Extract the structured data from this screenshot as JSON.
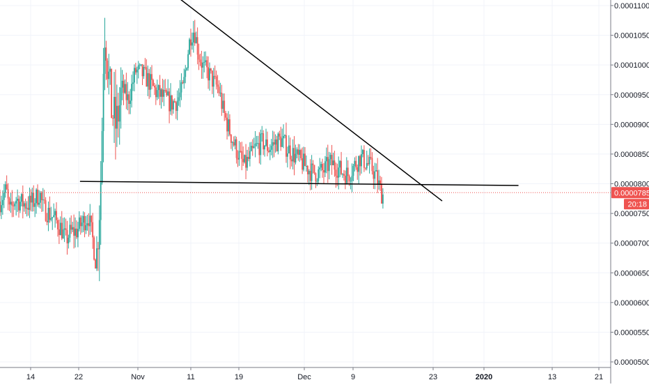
{
  "chart_data": {
    "type": "candlestick",
    "colors": {
      "up": "#26a69a",
      "down": "#ef5350",
      "grid": "#f0f3fa",
      "axis_text": "#131722",
      "trendline": "#000000",
      "price_label_bg": "#ef5350",
      "price_line": "#ef5350"
    },
    "y_axis": {
      "position": "right",
      "range": [
        4.95e-05,
        0.000111
      ],
      "ticks": [
        "0.0000500",
        "0.0000550",
        "0.0000600",
        "0.0000650",
        "0.0000700",
        "0.0000750",
        "0.0000800",
        "0.0000850",
        "0.0000900",
        "0.0000950",
        "0.0001000",
        "0.0001050",
        "0.0001100"
      ]
    },
    "x_axis": {
      "ticks": [
        {
          "label": "14",
          "bold": false
        },
        {
          "label": "22",
          "bold": false
        },
        {
          "label": "Nov",
          "bold": false
        },
        {
          "label": "11",
          "bold": false
        },
        {
          "label": "19",
          "bold": false
        },
        {
          "label": "Dec",
          "bold": false
        },
        {
          "label": "9",
          "bold": false
        },
        {
          "label": "23",
          "bold": false
        },
        {
          "label": "2020",
          "bold": true
        },
        {
          "label": "13",
          "bold": false
        },
        {
          "label": "21",
          "bold": false
        }
      ]
    },
    "current_price": {
      "label": "0.0000785",
      "value": 7.85e-05,
      "countdown": "20:18"
    },
    "trendlines": [
      {
        "name": "descending-resistance",
        "points": [
          [
            0.286,
            0.0001118
          ],
          [
            0.724,
            7.71e-05
          ]
        ]
      },
      {
        "name": "horizontal-support",
        "points": [
          [
            0.131,
            8.04e-05
          ],
          [
            0.849,
            7.97e-05
          ]
        ]
      }
    ],
    "price_path": [
      [
        0.0,
        7.7e-05
      ],
      [
        0.01,
        7.9e-05
      ],
      [
        0.016,
        7.5e-05
      ],
      [
        0.025,
        7.75e-05
      ],
      [
        0.035,
        7.68e-05
      ],
      [
        0.045,
        7.65e-05
      ],
      [
        0.055,
        7.7e-05
      ],
      [
        0.065,
        7.85e-05
      ],
      [
        0.07,
        7.6e-05
      ],
      [
        0.08,
        7.5e-05
      ],
      [
        0.09,
        7.4e-05
      ],
      [
        0.1,
        7.25e-05
      ],
      [
        0.108,
        7.05e-05
      ],
      [
        0.115,
        7.18e-05
      ],
      [
        0.125,
        7.2e-05
      ],
      [
        0.135,
        7.35e-05
      ],
      [
        0.145,
        7.45e-05
      ],
      [
        0.152,
        7.05e-05
      ],
      [
        0.157,
        6.65e-05
      ],
      [
        0.162,
        7.45e-05
      ],
      [
        0.166,
        8.3e-05
      ],
      [
        0.169,
        0.0001
      ],
      [
        0.172,
        0.000107
      ],
      [
        0.177,
        9.9e-05
      ],
      [
        0.182,
        9.3e-05
      ],
      [
        0.19,
        8.95e-05
      ],
      [
        0.2,
        9.6e-05
      ],
      [
        0.21,
        9.4e-05
      ],
      [
        0.222,
        9.9e-05
      ],
      [
        0.233,
        9.85e-05
      ],
      [
        0.242,
        9.75e-05
      ],
      [
        0.255,
        9.55e-05
      ],
      [
        0.268,
        9.45e-05
      ],
      [
        0.28,
        9.35e-05
      ],
      [
        0.29,
        9.4e-05
      ],
      [
        0.3,
        9.6e-05
      ],
      [
        0.306,
        0.000101
      ],
      [
        0.312,
        0.000105
      ],
      [
        0.318,
        0.000106
      ],
      [
        0.325,
        0.000102
      ],
      [
        0.333,
        9.95e-05
      ],
      [
        0.342,
        9.85e-05
      ],
      [
        0.35,
        9.7e-05
      ],
      [
        0.358,
        9.6e-05
      ],
      [
        0.366,
        9.2e-05
      ],
      [
        0.374,
        8.95e-05
      ],
      [
        0.382,
        8.7e-05
      ],
      [
        0.392,
        8.45e-05
      ],
      [
        0.4,
        8.3e-05
      ],
      [
        0.41,
        8.45e-05
      ],
      [
        0.418,
        8.6e-05
      ],
      [
        0.43,
        8.7e-05
      ],
      [
        0.44,
        8.6e-05
      ],
      [
        0.452,
        8.7e-05
      ],
      [
        0.46,
        8.75e-05
      ],
      [
        0.47,
        8.6e-05
      ],
      [
        0.48,
        8.5e-05
      ],
      [
        0.49,
        8.4e-05
      ],
      [
        0.5,
        8.3e-05
      ],
      [
        0.51,
        8.2e-05
      ],
      [
        0.52,
        8.18e-05
      ],
      [
        0.53,
        8.22e-05
      ],
      [
        0.54,
        8.35e-05
      ],
      [
        0.55,
        8.3e-05
      ],
      [
        0.56,
        8.2e-05
      ],
      [
        0.57,
        8.15e-05
      ],
      [
        0.58,
        8.3e-05
      ],
      [
        0.59,
        8.45e-05
      ],
      [
        0.6,
        8.35e-05
      ],
      [
        0.61,
        8.25e-05
      ],
      [
        0.618,
        8.05e-05
      ],
      [
        0.624,
        7.85e-05
      ],
      [
        0.628,
        7.8e-05
      ]
    ]
  }
}
